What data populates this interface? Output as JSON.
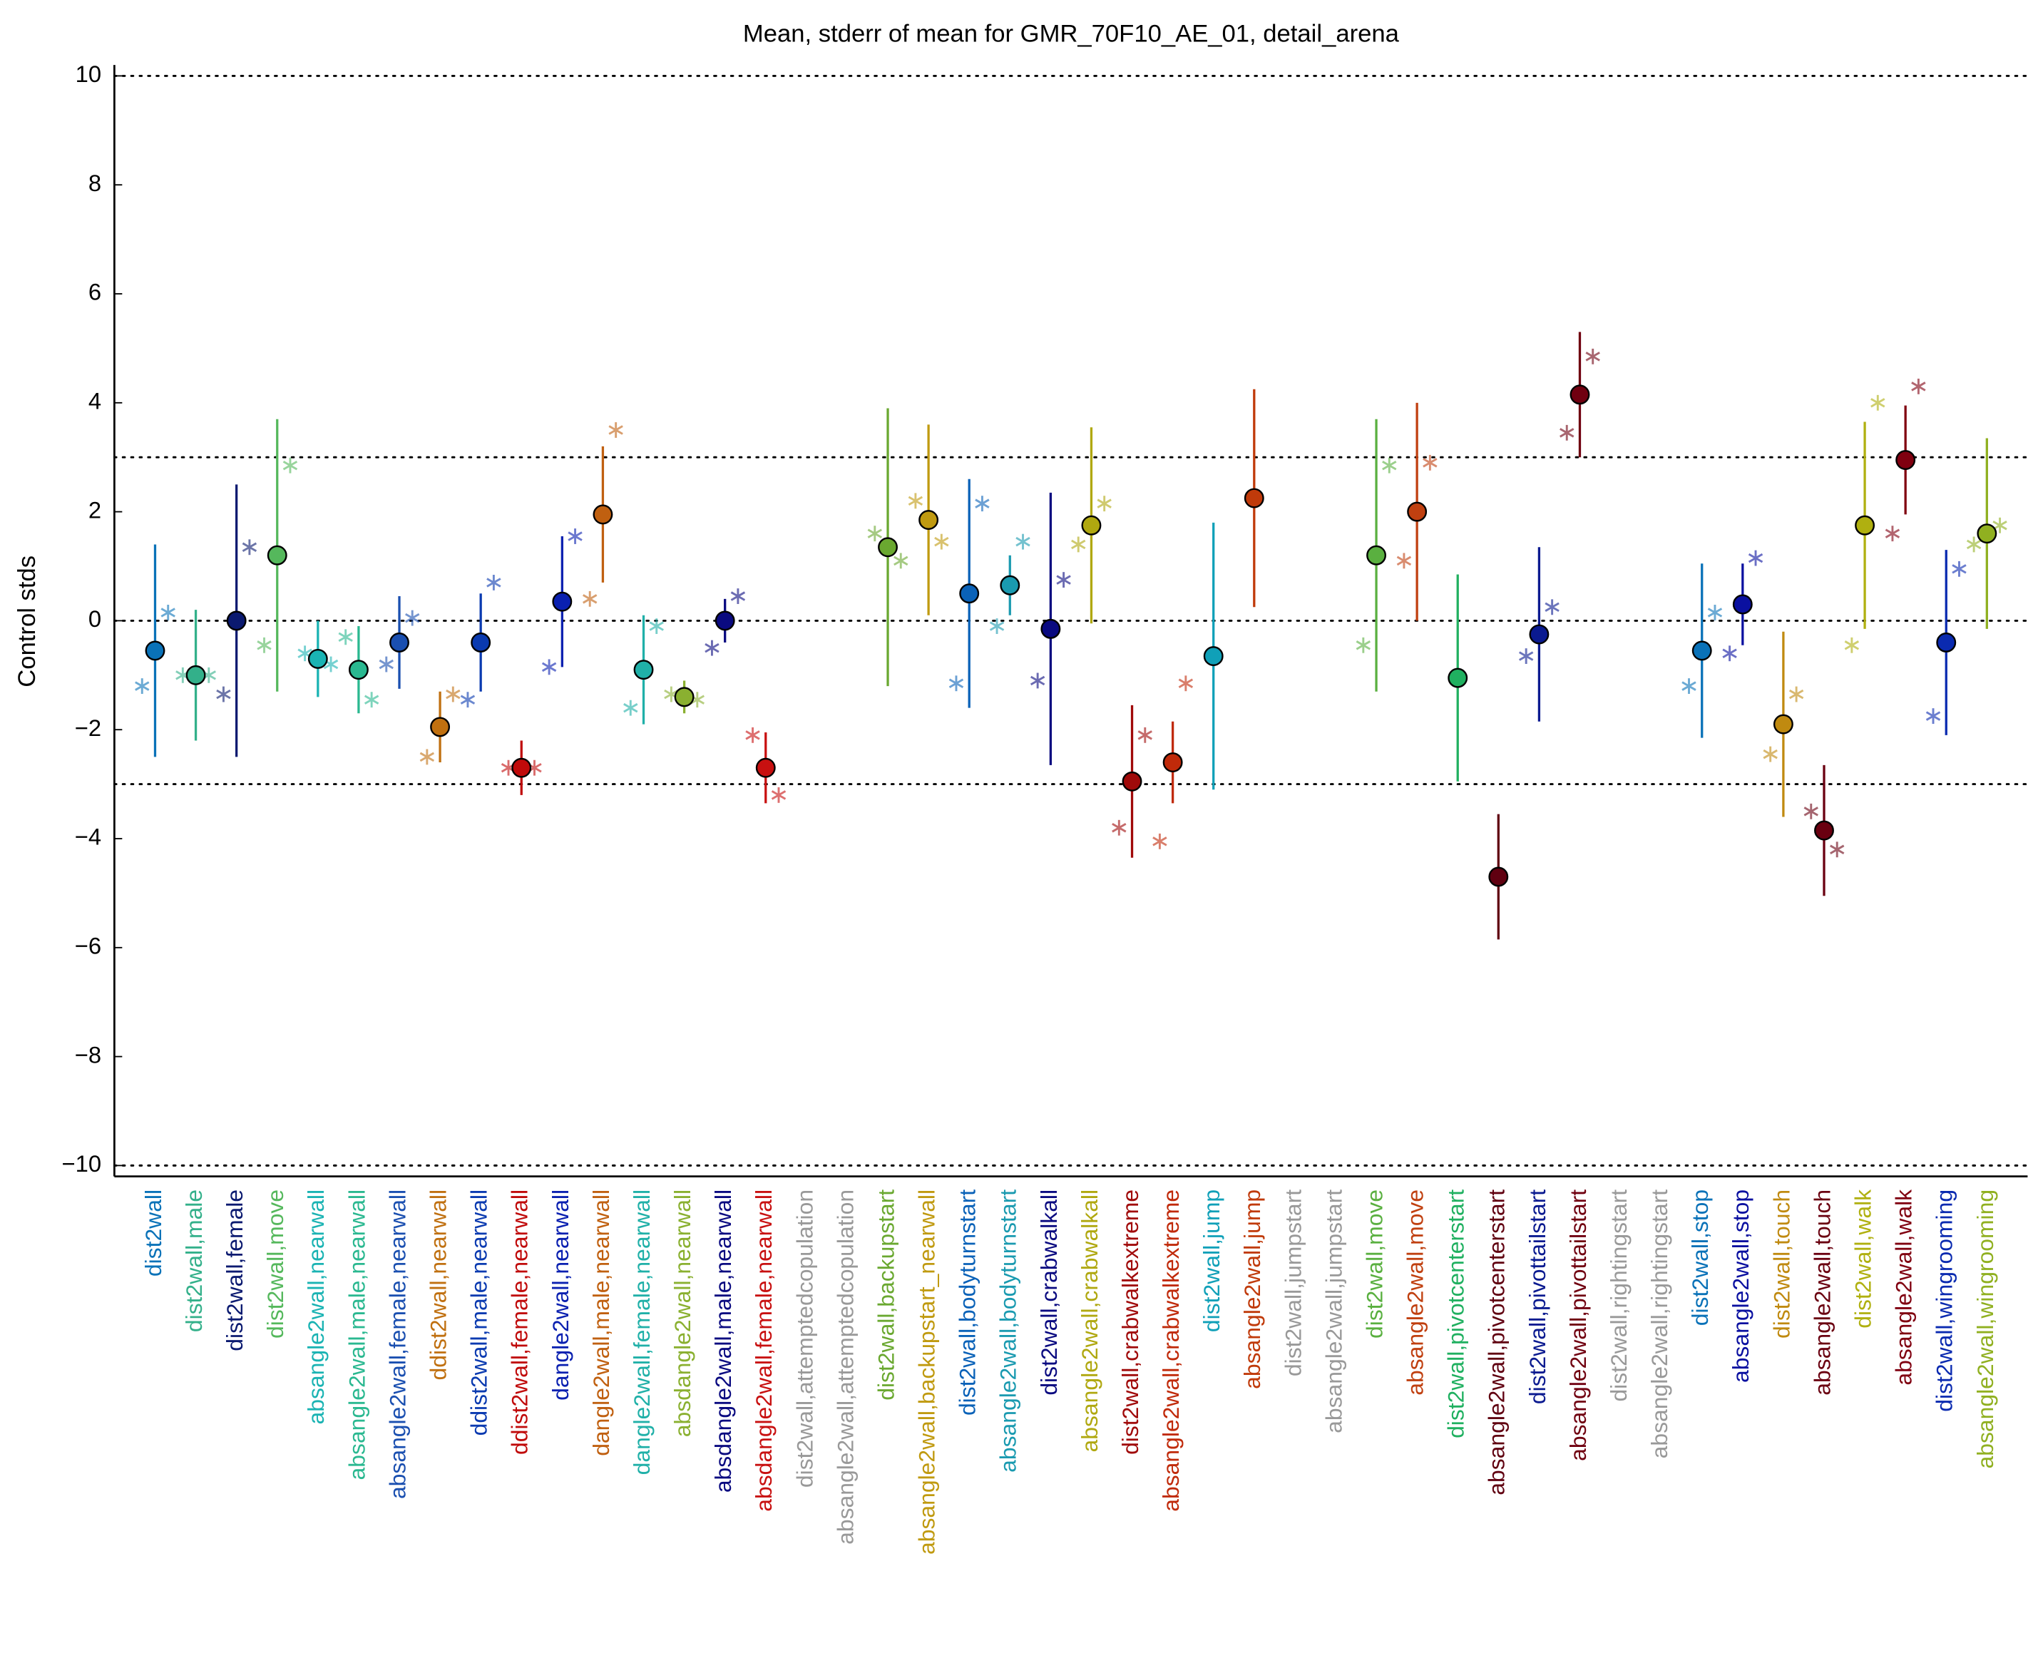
{
  "chart_data": {
    "type": "errorbar",
    "title": "Mean, stderr of mean for GMR_70F10_AE_01, detail_arena",
    "y_label": "Control stds",
    "ylim": [
      -10.2,
      10.2
    ],
    "yticks": [
      {
        "value": -10,
        "label": "−10"
      },
      {
        "value": -8,
        "label": "−8"
      },
      {
        "value": -6,
        "label": "−6"
      },
      {
        "value": -4,
        "label": "−4"
      },
      {
        "value": -2,
        "label": "−2"
      },
      0,
      2,
      4,
      6,
      8,
      10
    ],
    "reference_lines": [
      -10,
      -3,
      0,
      3,
      10
    ],
    "categories": [
      "dist2wall",
      "dist2wall,male",
      "dist2wall,female",
      "dist2wall,move",
      "absangle2wall,nearwall",
      "absangle2wall,male,nearwall",
      "absangle2wall,female,nearwall",
      "ddist2wall,nearwall",
      "ddist2wall,male,nearwall",
      "ddist2wall,female,nearwall",
      "dangle2wall,nearwall",
      "dangle2wall,male,nearwall",
      "dangle2wall,female,nearwall",
      "absdangle2wall,nearwall",
      "absdangle2wall,male,nearwall",
      "absdangle2wall,female,nearwall",
      "dist2wall,attemptedcopulation",
      "absangle2wall,attemptedcopulation",
      "dist2wall,backupstart",
      "absangle2wall,backupstart_nearwall",
      "dist2wall,bodyturnstart",
      "absangle2wall,bodyturnstart",
      "dist2wall,crabwalkall",
      "absangle2wall,crabwalkall",
      "dist2wall,crabwalkextreme",
      "absangle2wall,crabwalkextreme",
      "dist2wall,jump",
      "absangle2wall,jump",
      "dist2wall,jumpstart",
      "absangle2wall,jumpstart",
      "dist2wall,move",
      "absangle2wall,move",
      "dist2wall,pivotcenterstart",
      "absangle2wall,pivotcenterstart",
      "dist2wall,pivottailstart",
      "absangle2wall,pivottailstart",
      "dist2wall,rightingstart",
      "absangle2wall,rightingstart",
      "dist2wall,stop",
      "absangle2wall,stop",
      "dist2wall,touch",
      "absangle2wall,touch",
      "dist2wall,walk",
      "absangle2wall,walk",
      "dist2wall,wingrooming",
      "absangle2wall,wingrooming"
    ],
    "colors": [
      "#0a72b8",
      "#33b08a",
      "#0b1a70",
      "#55b85c",
      "#1ab3b3",
      "#2ab890",
      "#1a4fb0",
      "#c07010",
      "#0a3ab0",
      "#c00a0a",
      "#0a20b0",
      "#c06010",
      "#20b0a8",
      "#8ab030",
      "#0a0a80",
      "#c81010",
      "#999999",
      "#999999",
      "#6aa830",
      "#c09a10",
      "#0a62b8",
      "#1a9ab0",
      "#0a0a80",
      "#b0a810",
      "#a00a0a",
      "#c02a0a",
      "#10a0b8",
      "#c03a0a",
      "#999999",
      "#999999",
      "#5ab040",
      "#c04010",
      "#20b060",
      "#600010",
      "#0a1a90",
      "#700010",
      "#999999",
      "#999999",
      "#0a72b8",
      "#0a10a0",
      "#c08a10",
      "#6a0010",
      "#b0b010",
      "#800010",
      "#0a2ab0",
      "#90b020"
    ],
    "mean": [
      -0.55,
      -1.0,
      0.0,
      1.2,
      -0.7,
      -0.9,
      -0.4,
      -1.95,
      -0.4,
      -2.7,
      0.35,
      1.95,
      -0.9,
      -1.4,
      0.0,
      -2.7,
      null,
      null,
      1.35,
      1.85,
      0.5,
      0.65,
      -0.15,
      1.75,
      -2.95,
      -2.6,
      -0.65,
      2.25,
      null,
      null,
      1.2,
      2.0,
      -1.05,
      -4.7,
      -0.25,
      4.15,
      null,
      null,
      -0.55,
      0.3,
      -1.9,
      -3.85,
      1.75,
      2.95,
      -0.4,
      1.6
    ],
    "stderr": [
      1.95,
      1.2,
      2.5,
      2.5,
      0.7,
      0.8,
      0.85,
      0.65,
      0.9,
      0.5,
      1.2,
      1.25,
      1.0,
      0.3,
      0.4,
      0.65,
      null,
      null,
      2.55,
      1.75,
      2.1,
      0.55,
      2.5,
      1.8,
      1.4,
      0.75,
      2.45,
      2.0,
      null,
      null,
      2.5,
      2.0,
      1.9,
      1.15,
      1.6,
      1.15,
      null,
      null,
      1.6,
      0.75,
      1.7,
      1.2,
      1.9,
      1.0,
      1.7,
      1.75
    ],
    "left_asterisk": [
      -1.2,
      -1.0,
      -1.35,
      -0.45,
      -0.6,
      -0.3,
      -0.8,
      -2.5,
      -1.45,
      -2.7,
      -0.85,
      0.4,
      -1.6,
      -1.35,
      -0.5,
      -2.1,
      null,
      null,
      1.6,
      2.2,
      -1.15,
      -0.1,
      -1.1,
      1.4,
      -3.8,
      -4.05,
      null,
      null,
      null,
      null,
      -0.45,
      1.1,
      null,
      null,
      -0.65,
      3.45,
      null,
      null,
      -1.2,
      -0.6,
      -2.45,
      -3.5,
      -0.45,
      1.6,
      -1.75,
      1.4
    ],
    "right_asterisk": [
      0.15,
      -1.0,
      1.35,
      2.85,
      -0.8,
      -1.45,
      0.05,
      -1.35,
      0.7,
      -2.7,
      1.55,
      3.5,
      -0.1,
      -1.45,
      0.45,
      -3.2,
      null,
      null,
      1.1,
      1.45,
      2.15,
      1.45,
      0.75,
      2.15,
      -2.1,
      -1.15,
      null,
      null,
      null,
      null,
      2.85,
      2.9,
      null,
      null,
      0.25,
      4.85,
      null,
      null,
      0.15,
      1.15,
      -1.35,
      -4.2,
      4.0,
      4.3,
      0.95,
      1.75
    ]
  }
}
